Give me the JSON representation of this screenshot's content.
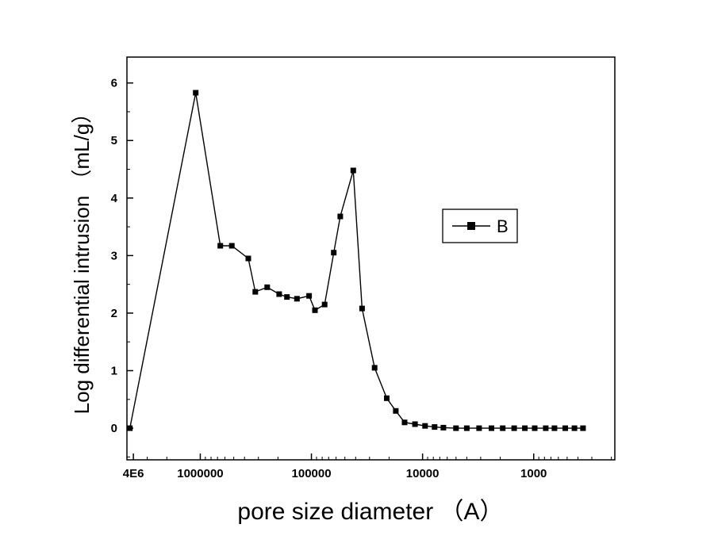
{
  "page": {
    "background": "#ffffff"
  },
  "chart_data": {
    "type": "line",
    "title": "",
    "xlabel": "pore size diameter （A）",
    "ylabel": "Log differential intrusion （mL/g）",
    "x_scale": "log",
    "x_reversed": true,
    "x_range_log": [
      6.66,
      2.27
    ],
    "ylim": [
      -0.55,
      6.45
    ],
    "grid": false,
    "x_major_ticks": [
      {
        "value": 4000000,
        "label": "4E6"
      },
      {
        "value": 1000000,
        "label": "1000000"
      },
      {
        "value": 100000,
        "label": "100000"
      },
      {
        "value": 10000,
        "label": "10000"
      },
      {
        "value": 1000,
        "label": "1000"
      }
    ],
    "y_major_ticks": [
      {
        "value": 0,
        "label": "0"
      },
      {
        "value": 1,
        "label": "1"
      },
      {
        "value": 2,
        "label": "2"
      },
      {
        "value": 3,
        "label": "3"
      },
      {
        "value": 4,
        "label": "4"
      },
      {
        "value": 5,
        "label": "5"
      },
      {
        "value": 6,
        "label": "6"
      }
    ],
    "legend": {
      "position": "right-center",
      "entries": [
        {
          "label": "B",
          "marker": "square",
          "color": "#000000"
        }
      ]
    },
    "series": [
      {
        "name": "B",
        "color": "#000000",
        "marker": "square",
        "points": [
          [
            4300000,
            0.0
          ],
          [
            1100000,
            5.83
          ],
          [
            660000,
            3.17
          ],
          [
            520000,
            3.17
          ],
          [
            370000,
            2.95
          ],
          [
            320000,
            2.37
          ],
          [
            250000,
            2.45
          ],
          [
            195000,
            2.33
          ],
          [
            166000,
            2.28
          ],
          [
            135000,
            2.25
          ],
          [
            105000,
            2.3
          ],
          [
            93000,
            2.05
          ],
          [
            76000,
            2.15
          ],
          [
            63000,
            3.05
          ],
          [
            55000,
            3.68
          ],
          [
            42000,
            4.48
          ],
          [
            35000,
            2.08
          ],
          [
            27000,
            1.05
          ],
          [
            21000,
            0.52
          ],
          [
            17400,
            0.3
          ],
          [
            14500,
            0.1
          ],
          [
            11700,
            0.07
          ],
          [
            9500,
            0.04
          ],
          [
            7800,
            0.02
          ],
          [
            6500,
            0.01
          ],
          [
            5000,
            0.0
          ],
          [
            4000,
            0.0
          ],
          [
            3100,
            0.0
          ],
          [
            2400,
            0.0
          ],
          [
            1900,
            0.0
          ],
          [
            1500,
            0.0
          ],
          [
            1200,
            0.0
          ],
          [
            980,
            0.0
          ],
          [
            780,
            0.0
          ],
          [
            650,
            0.0
          ],
          [
            520,
            0.0
          ],
          [
            430,
            0.0
          ],
          [
            360,
            0.0
          ]
        ]
      }
    ]
  }
}
